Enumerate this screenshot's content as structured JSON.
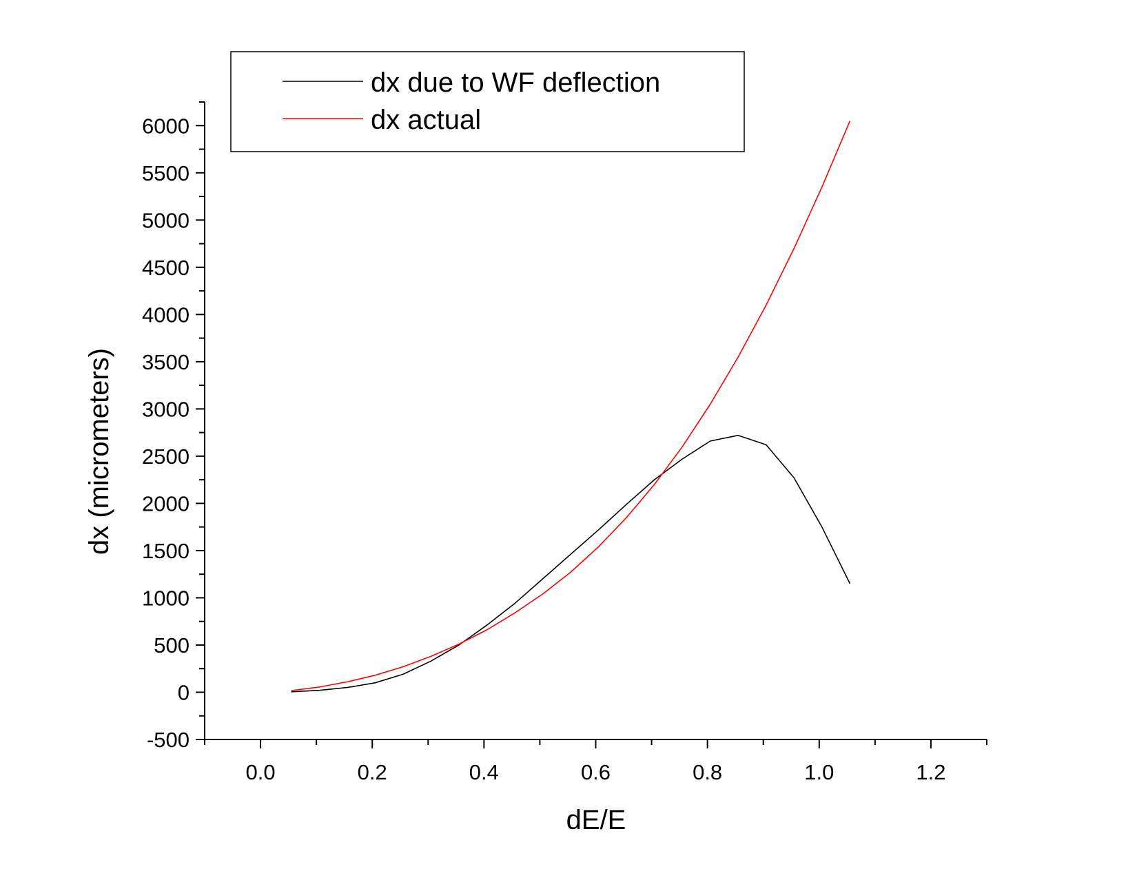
{
  "chart_data": {
    "type": "line",
    "xlabel": "dE/E",
    "ylabel": "dx (micrometers)",
    "xlim": [
      -0.1,
      1.3
    ],
    "ylim": [
      -500,
      6250
    ],
    "xticks": [
      "0.0",
      "0.2",
      "0.4",
      "0.6",
      "0.8",
      "1.0",
      "1.2"
    ],
    "xtick_values": [
      0.0,
      0.2,
      0.4,
      0.6,
      0.8,
      1.0,
      1.2
    ],
    "yticks": [
      "-500",
      "0",
      "500",
      "1000",
      "1500",
      "2000",
      "2500",
      "3000",
      "3500",
      "4000",
      "4500",
      "5000",
      "5500",
      "6000"
    ],
    "ytick_values": [
      -500,
      0,
      500,
      1000,
      1500,
      2000,
      2500,
      3000,
      3500,
      4000,
      4500,
      5000,
      5500,
      6000
    ],
    "grid": false,
    "legend_position": "top",
    "series": [
      {
        "name": "dx due to WF deflection",
        "color": "#000000",
        "x": [
          0.055,
          0.105,
          0.155,
          0.205,
          0.255,
          0.305,
          0.355,
          0.405,
          0.455,
          0.505,
          0.555,
          0.605,
          0.655,
          0.705,
          0.755,
          0.805,
          0.855,
          0.905,
          0.955,
          1.005,
          1.055
        ],
        "y": [
          5,
          20,
          50,
          100,
          190,
          330,
          500,
          710,
          940,
          1200,
          1460,
          1720,
          1990,
          2250,
          2470,
          2660,
          2720,
          2620,
          2270,
          1750,
          1150
        ]
      },
      {
        "name": "dx actual",
        "color": "#ff0000",
        "x": [
          0.055,
          0.105,
          0.155,
          0.205,
          0.255,
          0.305,
          0.355,
          0.405,
          0.455,
          0.505,
          0.555,
          0.605,
          0.655,
          0.705,
          0.755,
          0.805,
          0.855,
          0.905,
          0.955,
          1.005,
          1.055
        ],
        "y": [
          18,
          55,
          110,
          180,
          270,
          380,
          510,
          660,
          840,
          1040,
          1270,
          1540,
          1850,
          2200,
          2600,
          3050,
          3550,
          4100,
          4700,
          5350,
          6050
        ]
      }
    ]
  }
}
